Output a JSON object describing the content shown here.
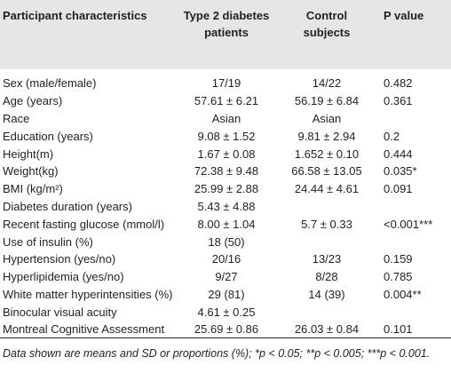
{
  "table": {
    "header": [
      "Participant characteristics",
      "Type 2 diabetes patients",
      "Control subjects",
      "P value"
    ],
    "rows": [
      [
        "Sex (male/female)",
        "17/19",
        "14/22",
        "0.482"
      ],
      [
        "Age (years)",
        "57.61 ± 6.21",
        "56.19 ± 6.84",
        "0.361"
      ],
      [
        "Race",
        "Asian",
        "Asian",
        null
      ],
      [
        "Education (years)",
        "9.08 ± 1.52",
        "9.81 ± 2.94",
        "0.2"
      ],
      [
        "Height(m)",
        "1.67 ± 0.08",
        "1.652 ± 0.10",
        "0.444"
      ],
      [
        "Weight(kg)",
        "72.38 ± 9.48",
        "66.58 ± 13.05",
        "0.035*"
      ],
      [
        "BMI (kg/m²)",
        "25.99 ± 2.88",
        "24.44 ± 4.61",
        "0.091"
      ],
      [
        "Diabetes duration (years)",
        "5.43 ± 4.88",
        null,
        null
      ],
      [
        "Recent fasting glucose (mmol/l)",
        "8.00 ± 1.04",
        "5.7 ± 0.33",
        "<0.001***"
      ],
      [
        "Use of insulin (%)",
        "18 (50)",
        null,
        null
      ],
      [
        "Hypertension (yes/no)",
        "20/16",
        "13/23",
        "0.159"
      ],
      [
        "Hyperlipidemia (yes/no)",
        "9/27",
        "8/28",
        "0.785"
      ],
      [
        "White matter hyperintensities (%)",
        "29 (81)",
        "14 (39)",
        "0.004**"
      ],
      [
        "Binocular visual acuity",
        "4.61 ± 0.25",
        null,
        null
      ],
      [
        "Montreal Cognitive Assessment",
        "25.69 ± 0.86",
        "26.03 ± 0.84",
        "0.101"
      ]
    ],
    "footnote": "Data shown are means and SD or proportions (%); *p < 0.05; **p < 0.005; ***p < 0.001."
  }
}
